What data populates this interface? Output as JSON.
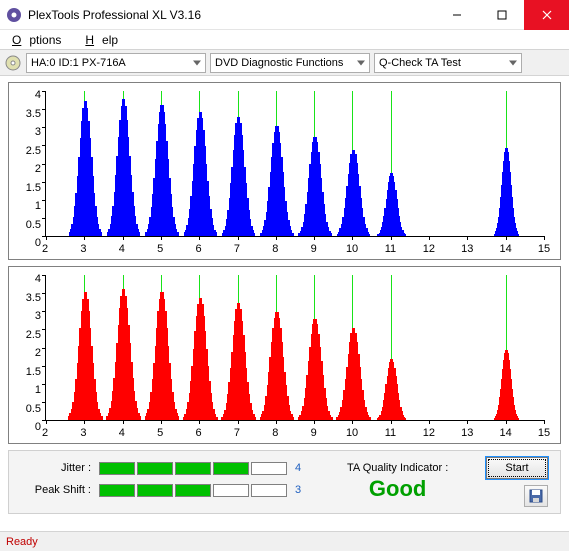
{
  "window": {
    "title": "PlexTools Professional XL V3.16"
  },
  "menubar": {
    "options": "Options",
    "help": "Help",
    "options_u": "O",
    "help_u": "H"
  },
  "toolbar": {
    "drive_selector": "HA:0 ID:1    PX-716A",
    "function_selector": "DVD Diagnostic Functions",
    "test_selector": "Q-Check TA Test"
  },
  "chart_top": {
    "type": "bar-histogram",
    "color": "#0000ff",
    "background": "#ffffff",
    "grid_color": "#00e000",
    "xlim": [
      2,
      15
    ],
    "ylim": [
      0,
      4
    ],
    "xticks": [
      2,
      3,
      4,
      5,
      6,
      7,
      8,
      9,
      10,
      11,
      12,
      13,
      14,
      15
    ],
    "yticks": [
      0,
      0.5,
      1,
      1.5,
      2,
      2.5,
      3,
      3.5,
      4
    ],
    "gridlines": [
      3,
      4,
      5,
      6,
      7,
      8,
      9,
      10,
      11,
      14
    ],
    "peaks": [
      {
        "c": 3,
        "w": 0.82,
        "h": 3.75
      },
      {
        "c": 4,
        "w": 0.82,
        "h": 3.8
      },
      {
        "c": 5,
        "w": 0.82,
        "h": 3.65
      },
      {
        "c": 6,
        "w": 0.82,
        "h": 3.45
      },
      {
        "c": 7,
        "w": 0.82,
        "h": 3.3
      },
      {
        "c": 8,
        "w": 0.82,
        "h": 3.05
      },
      {
        "c": 9,
        "w": 0.82,
        "h": 2.75
      },
      {
        "c": 10,
        "w": 0.82,
        "h": 2.4
      },
      {
        "c": 11,
        "w": 0.7,
        "h": 1.75
      },
      {
        "c": 14,
        "w": 0.6,
        "h": 2.45
      }
    ]
  },
  "chart_bottom": {
    "type": "bar-histogram",
    "color": "#ff0000",
    "background": "#ffffff",
    "grid_color": "#00e000",
    "xlim": [
      2,
      15
    ],
    "ylim": [
      0,
      4
    ],
    "xticks": [
      2,
      3,
      4,
      5,
      6,
      7,
      8,
      9,
      10,
      11,
      12,
      13,
      14,
      15
    ],
    "yticks": [
      0,
      0.5,
      1,
      1.5,
      2,
      2.5,
      3,
      3.5,
      4
    ],
    "gridlines": [
      3,
      4,
      5,
      6,
      7,
      8,
      9,
      10,
      11,
      14
    ],
    "peaks": [
      {
        "c": 3,
        "w": 0.85,
        "h": 3.55
      },
      {
        "c": 4,
        "w": 0.85,
        "h": 3.65
      },
      {
        "c": 5,
        "w": 0.85,
        "h": 3.55
      },
      {
        "c": 6,
        "w": 0.85,
        "h": 3.4
      },
      {
        "c": 7,
        "w": 0.85,
        "h": 3.25
      },
      {
        "c": 8,
        "w": 0.85,
        "h": 3.0
      },
      {
        "c": 9,
        "w": 0.85,
        "h": 2.8
      },
      {
        "c": 10,
        "w": 0.85,
        "h": 2.55
      },
      {
        "c": 11,
        "w": 0.72,
        "h": 1.7
      },
      {
        "c": 14,
        "w": 0.62,
        "h": 1.95
      }
    ]
  },
  "metrics": {
    "jitter": {
      "label": "Jitter :",
      "score": 4,
      "segments": [
        true,
        true,
        true,
        true,
        false
      ]
    },
    "peakshift": {
      "label": "Peak Shift :",
      "score": 3,
      "segments": [
        true,
        true,
        true,
        false,
        false
      ]
    }
  },
  "ta": {
    "label": "TA Quality Indicator :",
    "value": "Good",
    "color": "#00a000"
  },
  "buttons": {
    "start": "Start"
  },
  "statusbar": {
    "text": "Ready"
  }
}
